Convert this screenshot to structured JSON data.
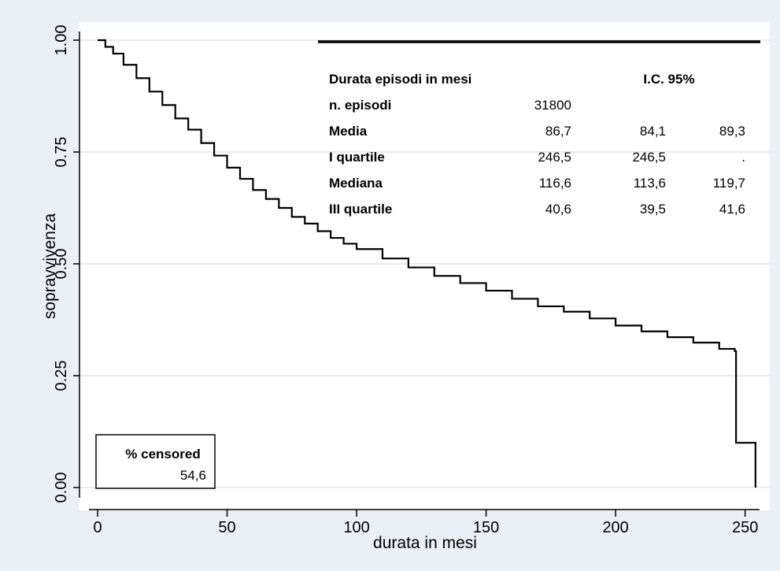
{
  "chart_data": {
    "type": "line",
    "title": "",
    "xlabel": "durata in mesi",
    "ylabel": "sopravvivenza",
    "xlim": [
      0,
      254
    ],
    "ylim": [
      0,
      1
    ],
    "x_ticks": [
      0,
      50,
      100,
      150,
      200,
      250
    ],
    "y_ticks": [
      0,
      0.25,
      0.5,
      0.75,
      1
    ],
    "y_tick_labels": [
      "0.00",
      "0.25",
      "0.50",
      "0.75",
      "1.00"
    ],
    "grid": true,
    "series": [
      {
        "name": "",
        "step": true,
        "x": [
          0,
          3,
          6,
          10,
          15,
          20,
          25,
          30,
          35,
          40,
          45,
          50,
          55,
          60,
          65,
          70,
          75,
          80,
          85,
          90,
          95,
          100,
          110,
          120,
          130,
          140,
          150,
          160,
          170,
          180,
          190,
          200,
          210,
          220,
          230,
          240,
          246,
          246.5,
          253,
          254
        ],
        "y": [
          1.0,
          0.985,
          0.97,
          0.945,
          0.915,
          0.885,
          0.855,
          0.825,
          0.8,
          0.77,
          0.742,
          0.715,
          0.69,
          0.665,
          0.645,
          0.625,
          0.605,
          0.59,
          0.573,
          0.558,
          0.545,
          0.533,
          0.512,
          0.492,
          0.473,
          0.457,
          0.44,
          0.422,
          0.405,
          0.393,
          0.378,
          0.362,
          0.349,
          0.336,
          0.324,
          0.31,
          0.305,
          0.1,
          0.1,
          0.0
        ]
      }
    ],
    "legend": "none"
  },
  "stats_table": {
    "header": {
      "label": "Durata episodi in mesi",
      "ci": "I.C. 95%"
    },
    "rows": [
      {
        "label": "n. episodi",
        "value": "31800",
        "low": "",
        "high": ""
      },
      {
        "label": "Media",
        "value": "86,7",
        "low": "84,1",
        "high": "89,3"
      },
      {
        "label": "I quartile",
        "value": "246,5",
        "low": "246,5",
        "high": "."
      },
      {
        "label": "Mediana",
        "value": "116,6",
        "low": "113,6",
        "high": "119,7"
      },
      {
        "label": "III quartile",
        "value": "40,6",
        "low": "39,5",
        "high": "41,6"
      }
    ]
  },
  "censored_box": {
    "label": "% censored",
    "value": "54,6"
  }
}
